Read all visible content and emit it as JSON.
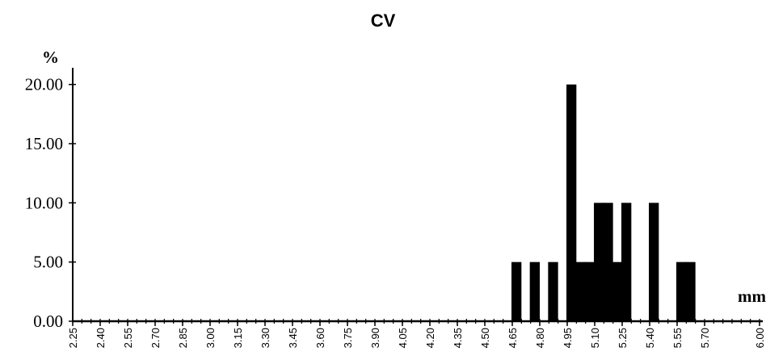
{
  "chart_data": {
    "type": "bar",
    "title": "CV",
    "ylabel": "%",
    "xlabel": "mm",
    "ylim": [
      0,
      21
    ],
    "xlim": [
      2.25,
      6.0
    ],
    "bin_width": 0.05,
    "y_ticks": [
      "0.00",
      "5.00",
      "10.00",
      "15.00",
      "20.00"
    ],
    "y_tick_values": [
      0,
      5,
      10,
      15,
      20
    ],
    "x_tick_labels": [
      "2.25",
      "2.40",
      "2.55",
      "2.70",
      "2.85",
      "3.00",
      "3.15",
      "3.30",
      "3.45",
      "3.60",
      "3.75",
      "3.90",
      "4.05",
      "4.20",
      "4.35",
      "4.50",
      "4.65",
      "4.80",
      "4.95",
      "5.10",
      "5.25",
      "5.40",
      "5.55",
      "5.70",
      "6.00"
    ],
    "x_tick_values": [
      2.25,
      2.4,
      2.55,
      2.7,
      2.85,
      3.0,
      3.15,
      3.3,
      3.45,
      3.6,
      3.75,
      3.9,
      4.05,
      4.2,
      4.35,
      4.5,
      4.65,
      4.8,
      4.95,
      5.1,
      5.25,
      5.4,
      5.55,
      5.7,
      6.0
    ],
    "bars": [
      {
        "x": 4.65,
        "value": 5
      },
      {
        "x": 4.75,
        "value": 5
      },
      {
        "x": 4.85,
        "value": 5
      },
      {
        "x": 4.95,
        "value": 20
      },
      {
        "x": 5.0,
        "value": 5
      },
      {
        "x": 5.05,
        "value": 5
      },
      {
        "x": 5.1,
        "value": 10
      },
      {
        "x": 5.15,
        "value": 10
      },
      {
        "x": 5.2,
        "value": 5
      },
      {
        "x": 5.25,
        "value": 10
      },
      {
        "x": 5.4,
        "value": 10
      },
      {
        "x": 5.55,
        "value": 5
      },
      {
        "x": 5.6,
        "value": 5
      }
    ],
    "grid": false,
    "legend": "none",
    "bar_color": "#000000"
  }
}
